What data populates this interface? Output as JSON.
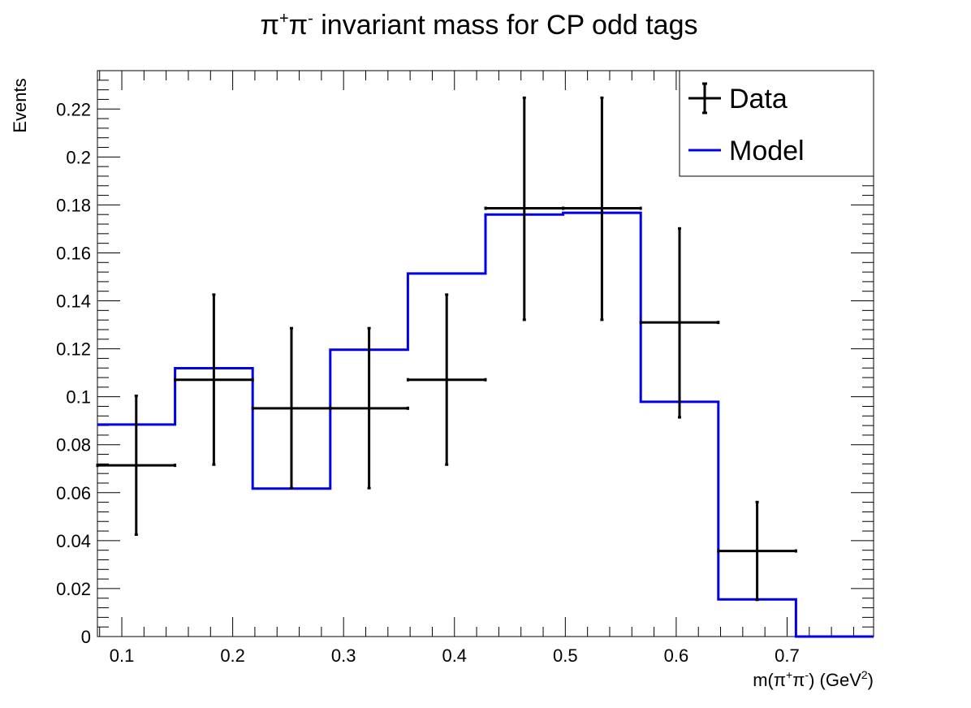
{
  "chart_data": {
    "type": "step-histogram-with-errorbars",
    "title": {
      "base": "π",
      "sup1": "+",
      "mid": "π",
      "sup2": "-",
      "rest": " invariant mass for CP odd tags"
    },
    "xlabel": {
      "a": "m(π",
      "sup1": "+",
      "b": "π",
      "sup2": "-",
      "c": ") (GeV",
      "sup3": "2",
      "d": ")"
    },
    "ylabel": "Events",
    "xlim": [
      0.078,
      0.778
    ],
    "ylim": [
      0,
      0.236
    ],
    "x_ticks": [
      0.1,
      0.2,
      0.3,
      0.4,
      0.5,
      0.6,
      0.7
    ],
    "x_tick_labels": [
      "0.1",
      "0.2",
      "0.3",
      "0.4",
      "0.5",
      "0.6",
      "0.7"
    ],
    "y_ticks": [
      0,
      0.02,
      0.04,
      0.06,
      0.08,
      0.1,
      0.12,
      0.14,
      0.16,
      0.18,
      0.2,
      0.22
    ],
    "y_tick_labels": [
      "0",
      "0.02",
      "0.04",
      "0.06",
      "0.08",
      "0.1",
      "0.12",
      "0.14",
      "0.16",
      "0.18",
      "0.2",
      "0.22"
    ],
    "legend": {
      "position": "top-right",
      "entries": [
        "Data",
        "Model"
      ]
    },
    "colors": {
      "data": "#000000",
      "model": "#0000ee"
    },
    "series": [
      {
        "name": "Data",
        "x": [
          0.113,
          0.183,
          0.253,
          0.323,
          0.393,
          0.463,
          0.533,
          0.603,
          0.673
        ],
        "xerr": [
          0.035,
          0.035,
          0.035,
          0.035,
          0.035,
          0.035,
          0.035,
          0.035,
          0.035
        ],
        "y": [
          0.0714,
          0.1071,
          0.0952,
          0.0952,
          0.1071,
          0.1786,
          0.1786,
          0.131,
          0.0357
        ],
        "y_low": [
          0.0425,
          0.0717,
          0.0619,
          0.0619,
          0.0717,
          0.1321,
          0.1321,
          0.0914,
          0.0153
        ],
        "y_high": [
          0.1004,
          0.1426,
          0.1286,
          0.1286,
          0.1426,
          0.2247,
          0.2247,
          0.1702,
          0.0561
        ]
      },
      {
        "name": "Model",
        "bin_edges": [
          0.078,
          0.148,
          0.218,
          0.288,
          0.358,
          0.428,
          0.498,
          0.568,
          0.638,
          0.708,
          0.778
        ],
        "values": [
          0.0884,
          0.1119,
          0.0617,
          0.1196,
          0.1514,
          0.176,
          0.1767,
          0.0979,
          0.0155,
          0.0
        ]
      }
    ]
  }
}
